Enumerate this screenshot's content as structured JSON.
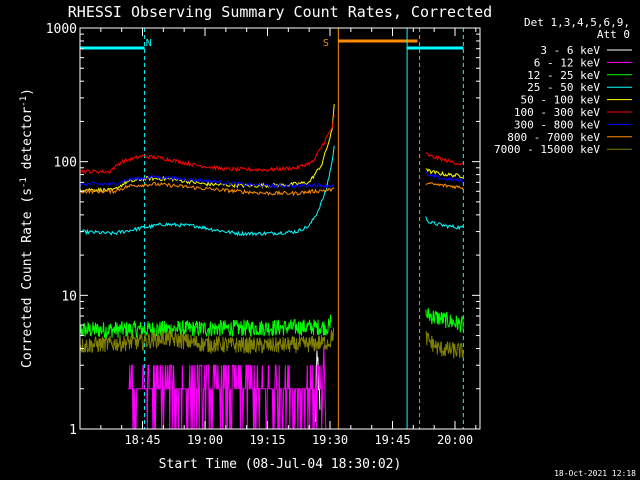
{
  "chart_data": {
    "type": "line",
    "title": "RHESSI Observing Summary Count Rates, Corrected",
    "xlabel": "Start Time (08-Jul-04 18:30:02)",
    "ylabel": "Corrected Count Rate (s",
    "ylabel_sup1": "-1",
    "ylabel_mid": " detector",
    "ylabel_sup2": "-1",
    "ylabel_end": ")",
    "yscale": "log",
    "ylim": [
      1,
      1000
    ],
    "xlim_minutes": [
      0,
      96
    ],
    "x_unit": "minutes since 18:30:02",
    "x_ticks": [
      {
        "m": 15,
        "label": "18:45"
      },
      {
        "m": 30,
        "label": "19:00"
      },
      {
        "m": 45,
        "label": "19:15"
      },
      {
        "m": 60,
        "label": "19:30"
      },
      {
        "m": 75,
        "label": "19:45"
      },
      {
        "m": 90,
        "label": "20:00"
      }
    ],
    "y_ticks": [
      {
        "v": 1,
        "label": "1"
      },
      {
        "v": 10,
        "label": "10"
      },
      {
        "v": 100,
        "label": "100"
      },
      {
        "v": 1000,
        "label": "1000"
      }
    ],
    "legend_header": [
      "Det 1,3,4,5,6,9,",
      "Att 0"
    ],
    "legend_position": "right",
    "series": [
      {
        "name": "3 - 6 keV",
        "color": "#ffffff",
        "segments": [
          [
            [
              56.5,
              1
            ],
            [
              56.8,
              2.5
            ],
            [
              57.1,
              3.0
            ],
            [
              57.4,
              2.0
            ],
            [
              57.6,
              1.0
            ]
          ]
        ]
      },
      {
        "name": "6 - 12 keV",
        "color": "#ff00ff",
        "segments": []
      },
      {
        "name": "12 - 25 keV",
        "color": "#00ff00",
        "segments": [
          [
            [
              0,
              5.5
            ],
            [
              60,
              5.8
            ],
            [
              60.3,
              7.5
            ]
          ],
          [
            [
              83,
              7.2
            ],
            [
              92,
              6.0
            ]
          ]
        ]
      },
      {
        "name": "25 - 50 keV",
        "color": "#00ffff",
        "segments": [
          [
            [
              0,
              30
            ],
            [
              8,
              29
            ],
            [
              15,
              32
            ],
            [
              20,
              34
            ],
            [
              28,
              33
            ],
            [
              32,
              31
            ],
            [
              38,
              29
            ],
            [
              45,
              29
            ],
            [
              52,
              30
            ],
            [
              55,
              33
            ],
            [
              57,
              42
            ],
            [
              59,
              60
            ],
            [
              60.5,
              100
            ],
            [
              61,
              130
            ]
          ],
          [
            [
              83,
              38
            ],
            [
              84,
              35
            ],
            [
              88,
              33
            ],
            [
              92,
              32
            ]
          ]
        ]
      },
      {
        "name": "50 - 100 keV",
        "color": "#ffff00",
        "segments": [
          [
            [
              0,
              62
            ],
            [
              8,
              61
            ],
            [
              11,
              70
            ],
            [
              16,
              75
            ],
            [
              22,
              74
            ],
            [
              30,
              68
            ],
            [
              40,
              66
            ],
            [
              50,
              67
            ],
            [
              55,
              70
            ],
            [
              58,
              95
            ],
            [
              60.5,
              170
            ],
            [
              61,
              270
            ]
          ],
          [
            [
              83,
              90
            ],
            [
              84,
              84
            ],
            [
              88,
              80
            ],
            [
              92,
              78
            ]
          ]
        ]
      },
      {
        "name": "100 - 300 keV",
        "color": "#ff0000",
        "segments": [
          [
            [
              0,
              85
            ],
            [
              7,
              84
            ],
            [
              10,
              100
            ],
            [
              15,
              110
            ],
            [
              20,
              106
            ],
            [
              28,
              94
            ],
            [
              35,
              88
            ],
            [
              45,
              87
            ],
            [
              52,
              90
            ],
            [
              56,
              100
            ],
            [
              58,
              130
            ],
            [
              60.5,
              180
            ],
            [
              61,
              220
            ]
          ],
          [
            [
              83,
              115
            ],
            [
              84,
              110
            ],
            [
              88,
              102
            ],
            [
              92,
              95
            ]
          ]
        ]
      },
      {
        "name": "300 - 800 keV",
        "color": "#0000ff",
        "segments": [
          [
            [
              0,
              68
            ],
            [
              8,
              68
            ],
            [
              12,
              74
            ],
            [
              18,
              77
            ],
            [
              25,
              74
            ],
            [
              32,
              71
            ],
            [
              38,
              68
            ],
            [
              45,
              66
            ],
            [
              52,
              66
            ],
            [
              56,
              67
            ],
            [
              61,
              66
            ]
          ],
          [
            [
              83,
              82
            ],
            [
              84,
              78
            ],
            [
              88,
              74
            ],
            [
              92,
              72
            ]
          ]
        ]
      },
      {
        "name": "800 - 7000 keV",
        "color": "#ff8c00",
        "segments": [
          [
            [
              0,
              60
            ],
            [
              8,
              60
            ],
            [
              12,
              66
            ],
            [
              18,
              68
            ],
            [
              25,
              65
            ],
            [
              32,
              62
            ],
            [
              38,
              60
            ],
            [
              45,
              58
            ],
            [
              52,
              58
            ],
            [
              56,
              60
            ],
            [
              61,
              62
            ]
          ],
          [
            [
              83,
              70
            ],
            [
              84,
              68
            ],
            [
              88,
              66
            ],
            [
              92,
              64
            ]
          ]
        ]
      },
      {
        "name": "7000 - 15000 keV",
        "color": "#808000",
        "segments": [
          [
            [
              0,
              4.2
            ],
            [
              15,
              4.5
            ],
            [
              20,
              4.8
            ],
            [
              30,
              4.3
            ],
            [
              45,
              4.2
            ],
            [
              55,
              4.3
            ],
            [
              60,
              4.5
            ],
            [
              61,
              5.5
            ]
          ],
          [
            [
              83,
              4.8
            ],
            [
              86,
              4.0
            ],
            [
              92,
              3.8
            ]
          ]
        ]
      }
    ],
    "annotations": [
      {
        "text": "N",
        "color": "#00ffff",
        "x_m": 16.5
      },
      {
        "text": "S",
        "color": "#ff8c00",
        "x_m": 59
      }
    ]
  },
  "footer_timestamp": "18-Oct-2021 12:18"
}
